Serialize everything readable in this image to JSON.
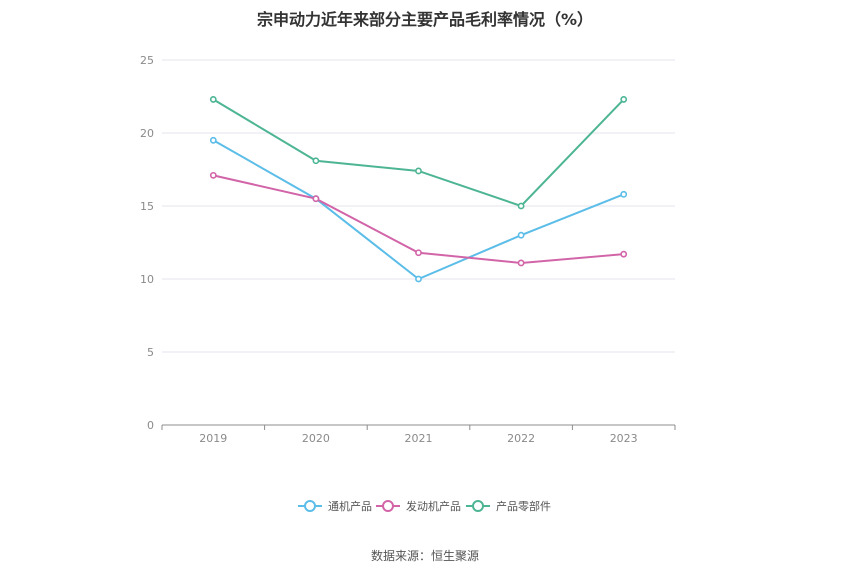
{
  "title": "宗申动力近年来部分主要产品毛利率情况（%）",
  "source": "数据来源：恒生聚源",
  "chart_data": {
    "type": "line",
    "title": "宗申动力近年来部分主要产品毛利率情况（%）",
    "xlabel": "",
    "ylabel": "",
    "categories": [
      "2019",
      "2020",
      "2021",
      "2022",
      "2023"
    ],
    "ylim": [
      0,
      25
    ],
    "yticks": [
      0,
      5,
      10,
      15,
      20,
      25
    ],
    "grid": true,
    "legend_position": "bottom",
    "series": [
      {
        "name": "通机产品",
        "color": "#5bbde8",
        "values": [
          19.5,
          15.5,
          10.0,
          13.0,
          15.8
        ]
      },
      {
        "name": "发动机产品",
        "color": "#d264a8",
        "values": [
          17.1,
          15.5,
          11.8,
          11.1,
          11.7
        ]
      },
      {
        "name": "产品零部件",
        "color": "#4db594",
        "values": [
          22.3,
          18.1,
          17.4,
          15.0,
          22.3
        ]
      }
    ]
  }
}
